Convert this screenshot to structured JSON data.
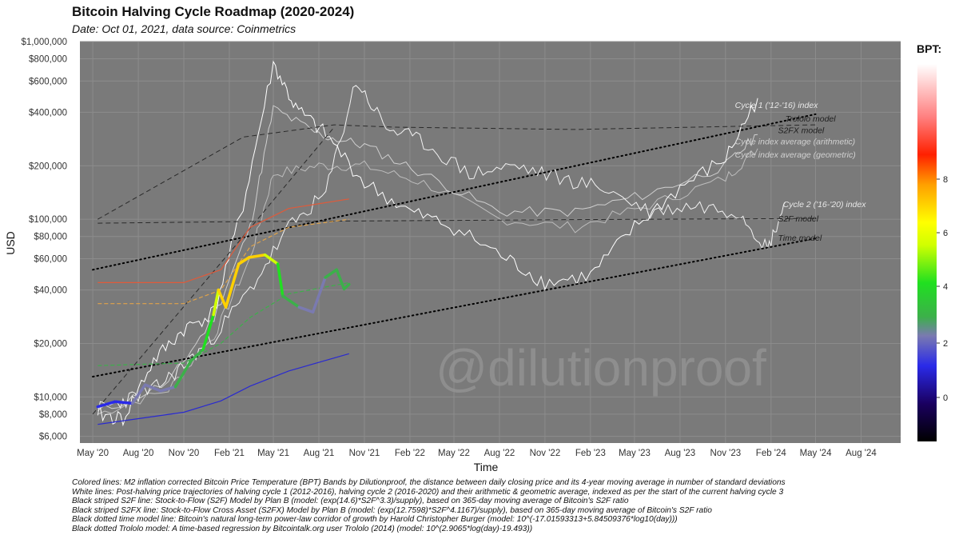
{
  "header": {
    "title": "Bitcoin Halving Cycle Roadmap (2020-2024)",
    "subtitle": "Date: Oct 01, 2021, data source: Coinmetrics"
  },
  "watermark": "@dilutionproof",
  "colors": {
    "panel": "#7a7a7a",
    "grid": "#8c8c8c",
    "s2f": "#e05a3a",
    "s2f_pale": "#e0a34a",
    "trolo": "#1c1c1c",
    "time": "#000000",
    "m2_band": "#2a2ad0"
  },
  "legend": {
    "title": "BPT:",
    "ticks": [
      "8",
      "6",
      "4",
      "2",
      "0"
    ]
  },
  "footnotes": [
    "Colored lines: M2 inflation corrected Bitcoin Price Temperature (BPT) Bands by Dilutionproof, the distance between daily closing price and its 4-year moving average in number of standard deviations",
    "White lines: Post-halving price trajectories of halving cycle 1 (2012-2016), halving cycle 2 (2016-2020) and their arithmetic & geometric average, indexed as per the start of the current halving cycle 3",
    "Black striped S2F line: Stock-to-Flow (S2F) Model by Plan B (model: (exp(14.6)*S2F^3.3)/supply), based on 365-day moving average of Bitcoin's S2F ratio",
    "Black striped S2FX line: Stock-to-Flow Cross Asset (S2FX) Model by Plan B (model: (exp(12.7598)*S2F^4.1167)/supply), based on 365-day moving average of Bitcoin's S2F ratio",
    "Black dotted time model line: Bitcoin's natural long-term power-law corridor of growth by Harold Christopher Burger (model: 10^(-17.01593313+5.84509376*log10(day)))",
    "Black dotted Trololo model: A time-based regression by Bitcointalk.org user Trololo (2014) (model: 10^(2.9065*log(day)-19.493))"
  ],
  "chart_data": {
    "type": "line",
    "title": "Bitcoin Halving Cycle Roadmap (2020-2024)",
    "xlabel": "Time",
    "ylabel": "USD",
    "y_scale": "log",
    "ylim": [
      5500,
      1000000
    ],
    "xlim": [
      "2020-04-05",
      "2024-10-20"
    ],
    "grid": true,
    "legend_position": "right",
    "y_ticks": [
      {
        "value": 6000,
        "label": "$6,000"
      },
      {
        "value": 8000,
        "label": "$8,000"
      },
      {
        "value": 10000,
        "label": "$10,000"
      },
      {
        "value": 20000,
        "label": "$20,000"
      },
      {
        "value": 40000,
        "label": "$40,000"
      },
      {
        "value": 60000,
        "label": "$60,000"
      },
      {
        "value": 80000,
        "label": "$80,000"
      },
      {
        "value": 100000,
        "label": "$100,000"
      },
      {
        "value": 200000,
        "label": "$200,000"
      },
      {
        "value": 400000,
        "label": "$400,000"
      },
      {
        "value": 600000,
        "label": "$600,000"
      },
      {
        "value": 800000,
        "label": "$800,000"
      },
      {
        "value": 1000000,
        "label": "$1,000,000"
      }
    ],
    "x_ticks": [
      {
        "date": "2020-05-01",
        "label": "May '20"
      },
      {
        "date": "2020-08-01",
        "label": "Aug '20"
      },
      {
        "date": "2020-11-01",
        "label": "Nov '20"
      },
      {
        "date": "2021-02-01",
        "label": "Feb '21"
      },
      {
        "date": "2021-05-01",
        "label": "May '21"
      },
      {
        "date": "2021-08-01",
        "label": "Aug '21"
      },
      {
        "date": "2021-11-01",
        "label": "Nov '21"
      },
      {
        "date": "2022-02-01",
        "label": "Feb '22"
      },
      {
        "date": "2022-05-01",
        "label": "May '22"
      },
      {
        "date": "2022-08-01",
        "label": "Aug '22"
      },
      {
        "date": "2022-11-01",
        "label": "Nov '22"
      },
      {
        "date": "2023-02-01",
        "label": "Feb '23"
      },
      {
        "date": "2023-05-01",
        "label": "May '23"
      },
      {
        "date": "2023-08-01",
        "label": "Aug '23"
      },
      {
        "date": "2023-11-01",
        "label": "Nov '23"
      },
      {
        "date": "2024-02-01",
        "label": "Feb '24"
      },
      {
        "date": "2024-05-01",
        "label": "May '24"
      },
      {
        "date": "2024-08-01",
        "label": "Aug '24"
      }
    ],
    "btc_price_bpt": [
      {
        "x": "2020-05-11",
        "y": 8800,
        "bpt": 0.2
      },
      {
        "x": "2020-06-15",
        "y": 9400,
        "bpt": 0.6
      },
      {
        "x": "2020-07-20",
        "y": 9200,
        "bpt": 0.8
      },
      {
        "x": "2020-08-15",
        "y": 11700,
        "bpt": 1.6
      },
      {
        "x": "2020-09-15",
        "y": 10800,
        "bpt": 1.4
      },
      {
        "x": "2020-10-15",
        "y": 11400,
        "bpt": 1.6
      },
      {
        "x": "2020-11-15",
        "y": 15900,
        "bpt": 2.6
      },
      {
        "x": "2020-12-10",
        "y": 18500,
        "bpt": 3.0
      },
      {
        "x": "2020-12-31",
        "y": 29000,
        "bpt": 4.2
      },
      {
        "x": "2021-01-10",
        "y": 40000,
        "bpt": 5.6
      },
      {
        "x": "2021-01-25",
        "y": 32000,
        "bpt": 4.8
      },
      {
        "x": "2021-02-20",
        "y": 56000,
        "bpt": 5.8
      },
      {
        "x": "2021-03-13",
        "y": 61000,
        "bpt": 5.6
      },
      {
        "x": "2021-04-14",
        "y": 63000,
        "bpt": 5.2
      },
      {
        "x": "2021-05-10",
        "y": 56000,
        "bpt": 4.6
      },
      {
        "x": "2021-05-20",
        "y": 37000,
        "bpt": 2.6
      },
      {
        "x": "2021-06-22",
        "y": 32000,
        "bpt": 1.8
      },
      {
        "x": "2021-07-20",
        "y": 30000,
        "bpt": 1.2
      },
      {
        "x": "2021-08-14",
        "y": 47000,
        "bpt": 2.4
      },
      {
        "x": "2021-09-06",
        "y": 52000,
        "bpt": 2.6
      },
      {
        "x": "2021-09-21",
        "y": 40500,
        "bpt": 2.1
      },
      {
        "x": "2021-10-01",
        "y": 43000,
        "bpt": 2.3
      }
    ],
    "s2f_model": [
      {
        "x": "2020-05-11",
        "y": 95000
      },
      {
        "x": "2021-03-01",
        "y": 97000
      },
      {
        "x": "2022-01-01",
        "y": 98000
      },
      {
        "x": "2023-01-01",
        "y": 99500
      },
      {
        "x": "2024-05-01",
        "y": 101000
      }
    ],
    "s2fx_model": [
      {
        "x": "2020-05-11",
        "y": 100000
      },
      {
        "x": "2021-03-01",
        "y": 290000
      },
      {
        "x": "2021-09-01",
        "y": 340000
      },
      {
        "x": "2022-01-01",
        "y": 330000
      },
      {
        "x": "2023-01-01",
        "y": 320000
      },
      {
        "x": "2024-05-01",
        "y": 340000
      }
    ],
    "trolo_model": [
      {
        "x": "2020-05-01",
        "y": 52000
      },
      {
        "x": "2024-05-01",
        "y": 390000
      }
    ],
    "time_model": [
      {
        "x": "2020-05-01",
        "y": 13000
      },
      {
        "x": "2024-05-01",
        "y": 78000
      }
    ],
    "cycle_annotations": [
      {
        "label": "Cycle 1 ('12-'16) index",
        "x": "2023-11-20",
        "y": 440000
      },
      {
        "label": "Trololo model",
        "x": "2024-03-01",
        "y": 370000
      },
      {
        "label": "S2FX model",
        "x": "2024-02-15",
        "y": 318000
      },
      {
        "label": "Cycle index average (arithmetic)",
        "x": "2023-11-20",
        "y": 275000
      },
      {
        "label": "Cycle index average (geometric)",
        "x": "2023-11-20",
        "y": 232000
      },
      {
        "label": "Cycle 2 ('16-'20) index",
        "x": "2024-02-25",
        "y": 122000
      },
      {
        "label": "S2F model",
        "x": "2024-02-15",
        "y": 101000
      },
      {
        "label": "Time model",
        "x": "2024-02-15",
        "y": 79000
      }
    ]
  }
}
